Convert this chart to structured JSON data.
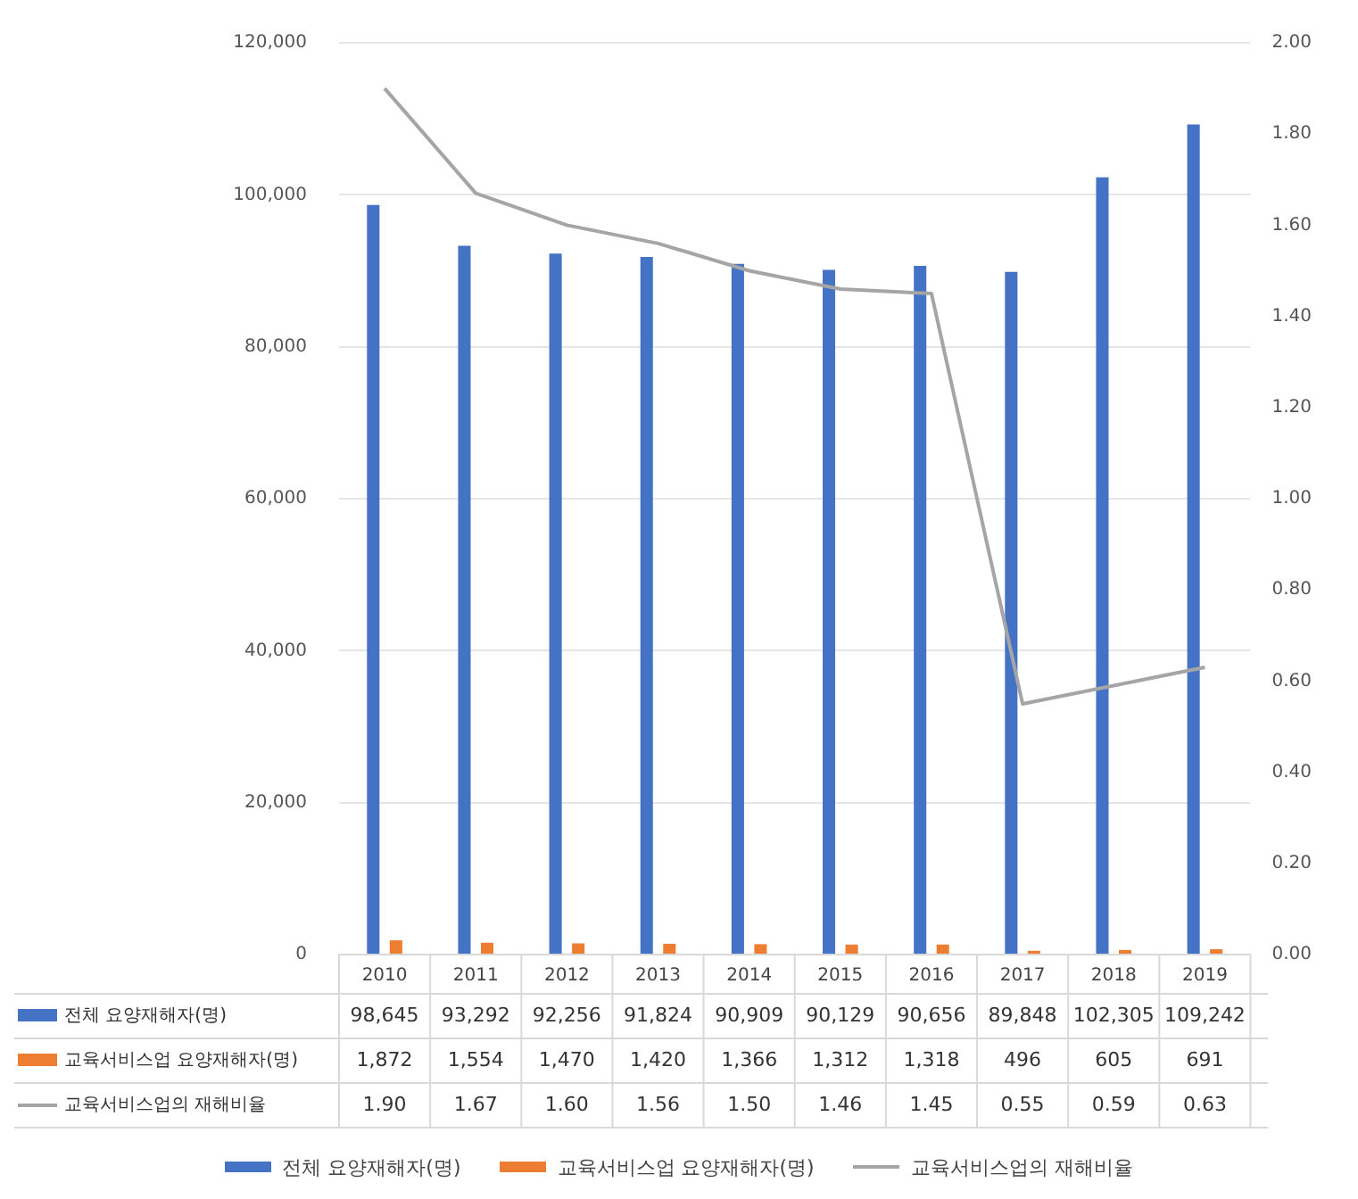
{
  "chart_data": {
    "type": "bar",
    "categories": [
      "2010",
      "2011",
      "2012",
      "2013",
      "2014",
      "2015",
      "2016",
      "2017",
      "2018",
      "2019"
    ],
    "series": [
      {
        "name": "전체 요양재해자(명)",
        "color": "#4472c4",
        "values": [
          98645,
          93292,
          92256,
          91824,
          90909,
          90129,
          90656,
          89848,
          102305,
          109242
        ],
        "value_labels": [
          "98,645",
          "93,292",
          "92,256",
          "91,824",
          "90,909",
          "90,129",
          "90,656",
          "89,848",
          "102,305",
          "109,242"
        ]
      },
      {
        "name": "교육서비스업 요양재해자(명)",
        "color": "#ed7d31",
        "values": [
          1872,
          1554,
          1470,
          1420,
          1366,
          1312,
          1318,
          496,
          605,
          691
        ],
        "value_labels": [
          "1,872",
          "1,554",
          "1,470",
          "1,420",
          "1,366",
          "1,312",
          "1,318",
          "496",
          "605",
          "691"
        ]
      },
      {
        "name": "교육서비스업의 재해비율",
        "type": "line",
        "axis": "y2",
        "color": "#a5a5a5",
        "values": [
          1.9,
          1.67,
          1.6,
          1.56,
          1.5,
          1.46,
          1.45,
          0.55,
          0.59,
          0.63
        ],
        "value_labels": [
          "1.90",
          "1.67",
          "1.60",
          "1.56",
          "1.50",
          "1.46",
          "1.45",
          "0.55",
          "0.59",
          "0.63"
        ]
      }
    ],
    "ylim": [
      0,
      120000
    ],
    "yticks": [
      {
        "value": 0,
        "label": "0"
      },
      {
        "value": 20000,
        "label": "20,000"
      },
      {
        "value": 40000,
        "label": "40,000"
      },
      {
        "value": 60000,
        "label": "60,000"
      },
      {
        "value": 80000,
        "label": "80,000"
      },
      {
        "value": 100000,
        "label": "100,000"
      },
      {
        "value": 120000,
        "label": "120,000"
      }
    ],
    "y2lim": [
      0,
      2
    ],
    "y2ticks": [
      {
        "value": 0,
        "label": "0.00"
      },
      {
        "value": 0.2,
        "label": "0.20"
      },
      {
        "value": 0.4,
        "label": "0.40"
      },
      {
        "value": 0.6,
        "label": "0.60"
      },
      {
        "value": 0.8,
        "label": "0.80"
      },
      {
        "value": 1,
        "label": "1.00"
      },
      {
        "value": 1.2,
        "label": "1.20"
      },
      {
        "value": 1.4,
        "label": "1.40"
      },
      {
        "value": 1.6,
        "label": "1.60"
      },
      {
        "value": 1.8,
        "label": "1.80"
      },
      {
        "value": 2,
        "label": "2.00"
      }
    ],
    "grid": "y",
    "legend": "bottom",
    "marker": "none",
    "line_style": "solid",
    "data_labels": true
  }
}
